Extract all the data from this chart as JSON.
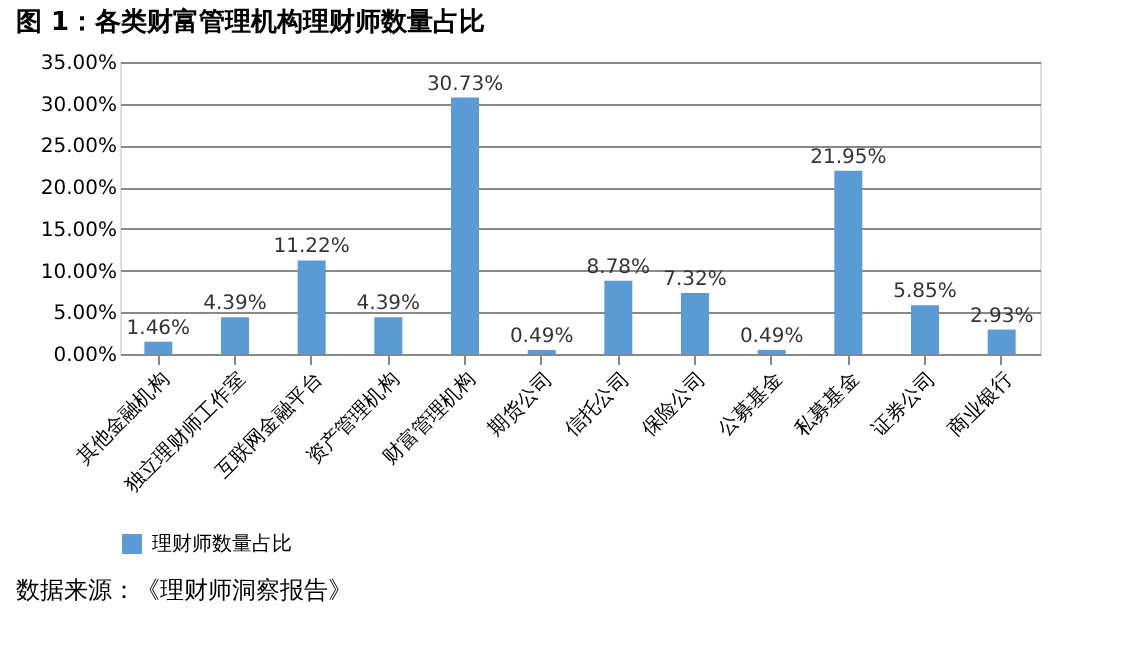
{
  "chart_data": {
    "type": "bar",
    "title": "图 1：各类财富管理机构理财师数量占比",
    "categories": [
      "其他金融机构",
      "独立理财师工作室",
      "互联网金融平台",
      "资产管理机构",
      "财富管理机构",
      "期货公司",
      "信托公司",
      "保险公司",
      "公募基金",
      "私募基金",
      "证券公司",
      "商业银行"
    ],
    "series": [
      {
        "name": "理财师数量占比",
        "color": "#5b9bd5",
        "values": [
          1.46,
          4.39,
          11.22,
          4.39,
          30.73,
          0.49,
          8.78,
          7.32,
          0.49,
          21.95,
          5.85,
          2.93
        ],
        "value_labels": [
          "1.46%",
          "4.39%",
          "11.22%",
          "4.39%",
          "30.73%",
          "0.49%",
          "8.78%",
          "7.32%",
          "0.49%",
          "21.95%",
          "5.85%",
          "2.93%"
        ]
      }
    ],
    "ylim": [
      0,
      35
    ],
    "yticks": [
      {
        "value": 0,
        "label": "0.00%"
      },
      {
        "value": 5,
        "label": "5.00%"
      },
      {
        "value": 10,
        "label": "10.00%"
      },
      {
        "value": 15,
        "label": "15.00%"
      },
      {
        "value": 20,
        "label": "20.00%"
      },
      {
        "value": 25,
        "label": "25.00%"
      },
      {
        "value": 30,
        "label": "30.00%"
      },
      {
        "value": 35,
        "label": "35.00%"
      }
    ],
    "grid": "y",
    "legend": "bottom",
    "annotations": [
      "数据来源：《理财师洞察报告》"
    ]
  }
}
